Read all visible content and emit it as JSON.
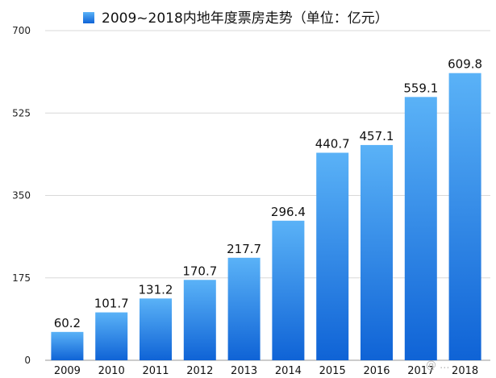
{
  "chart_data": {
    "type": "bar",
    "title": "",
    "legend": {
      "label": "2009~2018内地年度票房走势（单位：亿元）",
      "position": "top-center",
      "swatch_color": "#1874e0"
    },
    "categories": [
      "2009",
      "2010",
      "2011",
      "2012",
      "2013",
      "2014",
      "2015",
      "2016",
      "2017",
      "2018"
    ],
    "series": [
      {
        "name": "2009~2018内地年度票房走势（单位：亿元）",
        "values": [
          60.2,
          101.7,
          131.2,
          170.7,
          217.7,
          296.4,
          440.7,
          457.1,
          559.1,
          609.8
        ]
      }
    ],
    "data_labels": [
      "60.2",
      "101.7",
      "131.2",
      "170.7",
      "217.7",
      "296.4",
      "440.7",
      "457.1",
      "559.1",
      "609.8"
    ],
    "ylim": [
      0,
      700
    ],
    "yticks": [
      0,
      175,
      350,
      525,
      700
    ],
    "grid": true,
    "xlabel": "",
    "ylabel": "",
    "colors": {
      "bar_top": "#5ab2f7",
      "bar_bottom": "#0f63d6",
      "grid": "#d8d8d8"
    }
  },
  "watermark": "@ ..."
}
